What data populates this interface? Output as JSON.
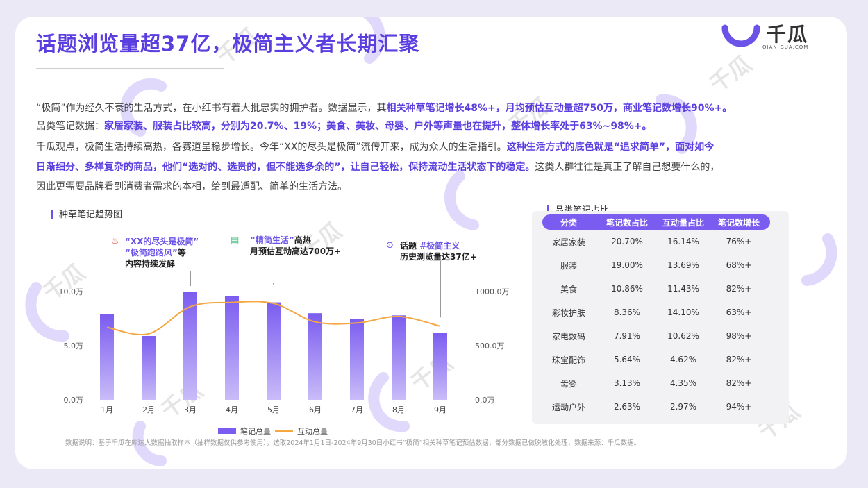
{
  "header": {
    "title": "话题浏览量超37亿，极简主义者长期汇聚",
    "logo_text": "千瓜",
    "logo_sub": "QIAN-GUA.COM"
  },
  "paragraphs": {
    "p1": [
      {
        "t": "“极简”作为经久不衰的生活方式，在小红书有着大批忠实的拥护者。数据显示，其",
        "h": false
      },
      {
        "t": "相关种草笔记增长48%+，月均预估互动量超750万，商业笔记数增长90%+。",
        "h": true
      }
    ],
    "p2": [
      {
        "t": "品类笔记数据：",
        "h": false
      },
      {
        "t": "家居家装、服装占比较高，分别为20.7%、19%；美食、美妆、母婴、户外等声量也在提升，整体增长率处于63%~98%+。",
        "h": true
      }
    ],
    "p3": [
      {
        "t": "千瓜观点，极简生活持续高热，各赛道呈稳步增长。今年“XX的尽头是极简”流传开来，成为众人的生活指引。",
        "h": false
      },
      {
        "t": "这种生活方式的底色就是“追求简单”，面对如今",
        "h": true
      }
    ],
    "p4": [
      {
        "t": "日渐细分、多样复杂的商品，他们“选对的、选贵的，但不能选多余的”，让自己轻松，保持流动生活状态下的稳定。",
        "h": true
      },
      {
        "t": "这类人群往往是真正了解自己想要什么的，",
        "h": false
      }
    ],
    "p5": [
      {
        "t": "因此更需要品牌看到消费者需求的本相，给到最适配、简单的生活方法。",
        "h": false
      }
    ]
  },
  "chart_section_title": "种草笔记趋势图",
  "table_section_title": "品类笔记占比",
  "annotations": {
    "a1": {
      "line1": "“XX的尽头是极简”",
      "line2": "“极简跑路风”",
      "line2_suffix": "等",
      "line3": "内容持续发酵"
    },
    "a2": {
      "line1_hl": "“精简生活”",
      "line1": "高热",
      "line2": "月预估互动高达700万+"
    },
    "a3": {
      "line1": "话题",
      "line1_hl": "#极简主义",
      "line2": "历史浏览量达37亿+"
    }
  },
  "chart_data": {
    "type": "bar",
    "categories": [
      "1月",
      "2月",
      "3月",
      "4月",
      "5月",
      "6月",
      "7月",
      "8月",
      "9月"
    ],
    "series": [
      {
        "name": "笔记总量",
        "kind": "bar",
        "axis": "left",
        "values": [
          7.9,
          5.9,
          10.0,
          9.6,
          9.0,
          8.0,
          7.5,
          7.8,
          6.2
        ]
      },
      {
        "name": "互动总量",
        "kind": "line",
        "axis": "right",
        "values": [
          670,
          610,
          860,
          900,
          890,
          720,
          710,
          770,
          680
        ]
      }
    ],
    "y_left": {
      "ticks": [
        "0.0万",
        "5.0万",
        "10.0万"
      ],
      "range": [
        0,
        10
      ]
    },
    "y_right": {
      "ticks": [
        "0.0万",
        "500.0万",
        "1000.0万"
      ],
      "range": [
        0,
        1000
      ]
    },
    "legend_position": "bottom",
    "colors": {
      "bar": "#7b5cf0",
      "bar_light": "#c9bcf8",
      "line": "#f5a742"
    }
  },
  "table": {
    "headers": [
      "分类",
      "笔记数占比",
      "互动量占比",
      "笔记数增长"
    ],
    "rows": [
      [
        "家居家装",
        "20.70%",
        "16.14%",
        "76%+"
      ],
      [
        "服装",
        "19.00%",
        "13.69%",
        "68%+"
      ],
      [
        "美食",
        "10.86%",
        "11.43%",
        "82%+"
      ],
      [
        "彩妆护肤",
        "8.36%",
        "14.10%",
        "63%+"
      ],
      [
        "家电数码",
        "7.91%",
        "10.62%",
        "98%+"
      ],
      [
        "珠宝配饰",
        "5.64%",
        "4.62%",
        "82%+"
      ],
      [
        "母婴",
        "3.13%",
        "4.35%",
        "82%+"
      ],
      [
        "运动户外",
        "2.63%",
        "2.97%",
        "94%+"
      ]
    ]
  },
  "footer": "数据说明：基于千瓜在库达人数据抽取样本（抽样数据仅供参考使用），选取2024年1月1日-2024年9月30日小红书“极简”相关种草笔记预估数据，部分数据已做脱敏化处理，数据来源：千瓜数据。",
  "colors": {
    "accent": "#5b3ee0",
    "bar": "#7b5cf0",
    "line": "#f5a742"
  }
}
